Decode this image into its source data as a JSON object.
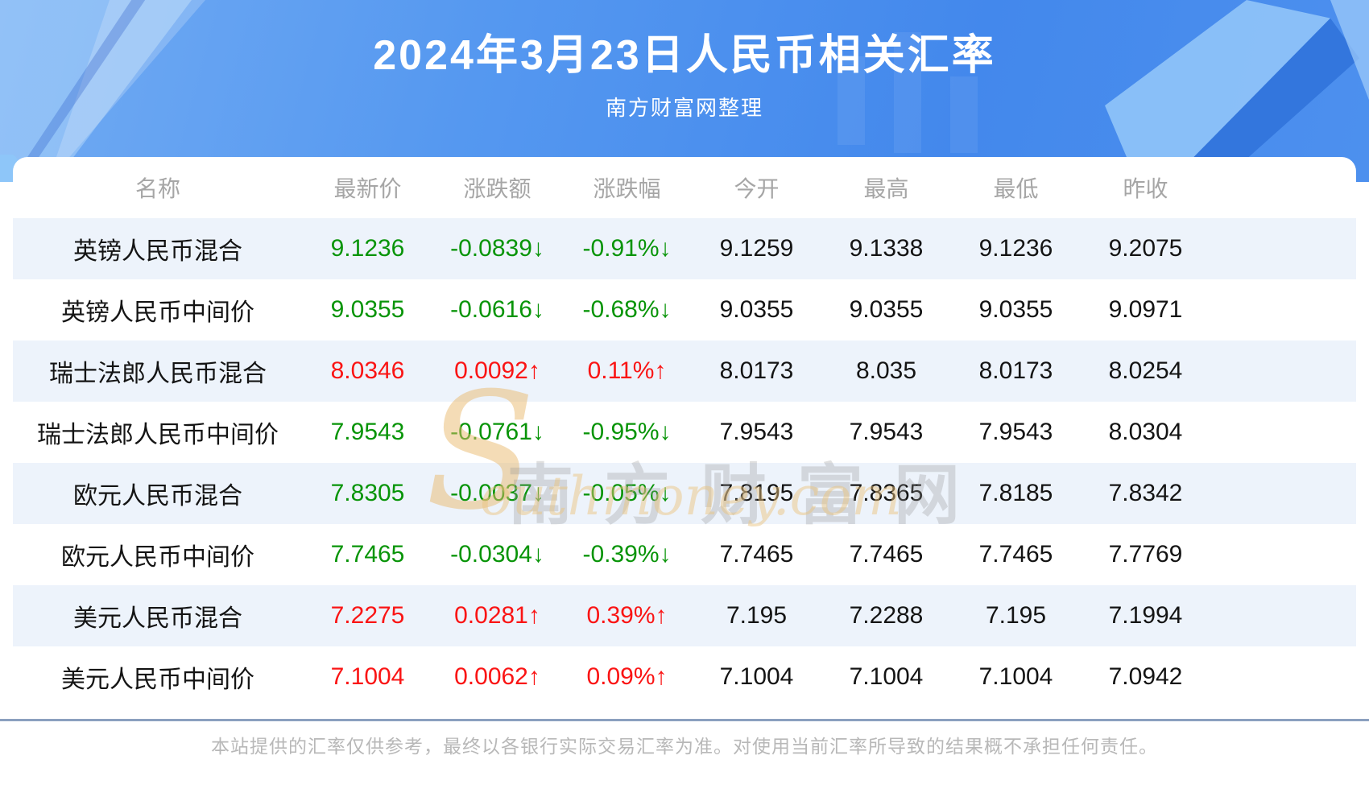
{
  "header": {
    "title": "2024年3月23日人民币相关汇率",
    "subtitle": "南方财富网整理"
  },
  "table": {
    "columns": [
      "名称",
      "最新价",
      "涨跌额",
      "涨跌幅",
      "今开",
      "最高",
      "最低",
      "昨收"
    ],
    "rows": [
      {
        "name": "英镑人民币混合",
        "latest": "9.1236",
        "change": "-0.0839↓",
        "change_pct": "-0.91%↓",
        "open": "9.1259",
        "high": "9.1338",
        "low": "9.1236",
        "prev_close": "9.2075",
        "trend": "down"
      },
      {
        "name": "英镑人民币中间价",
        "latest": "9.0355",
        "change": "-0.0616↓",
        "change_pct": "-0.68%↓",
        "open": "9.0355",
        "high": "9.0355",
        "low": "9.0355",
        "prev_close": "9.0971",
        "trend": "down"
      },
      {
        "name": "瑞士法郎人民币混合",
        "latest": "8.0346",
        "change": "0.0092↑",
        "change_pct": "0.11%↑",
        "open": "8.0173",
        "high": "8.035",
        "low": "8.0173",
        "prev_close": "8.0254",
        "trend": "up"
      },
      {
        "name": "瑞士法郎人民币中间价",
        "latest": "7.9543",
        "change": "-0.0761↓",
        "change_pct": "-0.95%↓",
        "open": "7.9543",
        "high": "7.9543",
        "low": "7.9543",
        "prev_close": "8.0304",
        "trend": "down"
      },
      {
        "name": "欧元人民币混合",
        "latest": "7.8305",
        "change": "-0.0037↓",
        "change_pct": "-0.05%↓",
        "open": "7.8195",
        "high": "7.8365",
        "low": "7.8185",
        "prev_close": "7.8342",
        "trend": "down"
      },
      {
        "name": "欧元人民币中间价",
        "latest": "7.7465",
        "change": "-0.0304↓",
        "change_pct": "-0.39%↓",
        "open": "7.7465",
        "high": "7.7465",
        "low": "7.7465",
        "prev_close": "7.7769",
        "trend": "down"
      },
      {
        "name": "美元人民币混合",
        "latest": "7.2275",
        "change": "0.0281↑",
        "change_pct": "0.39%↑",
        "open": "7.195",
        "high": "7.2288",
        "low": "7.195",
        "prev_close": "7.1994",
        "trend": "up"
      },
      {
        "name": "美元人民币中间价",
        "latest": "7.1004",
        "change": "0.0062↑",
        "change_pct": "0.09%↑",
        "open": "7.1004",
        "high": "7.1004",
        "low": "7.1004",
        "prev_close": "7.0942",
        "trend": "up"
      }
    ]
  },
  "watermark": {
    "logo_s": "S",
    "site_cn": "南方财富网",
    "site_en": "outhmoney.com"
  },
  "footer": {
    "disclaimer": "本站提供的汇率仅供参考，最终以各银行实际交易汇率为准。对使用当前汇率所导致的结果概不承担任何责任。"
  },
  "colors": {
    "up_red": "#fa1414",
    "down_green": "#089408",
    "banner_blue": "#4b8def",
    "row_stripe": "#edf3fb"
  }
}
